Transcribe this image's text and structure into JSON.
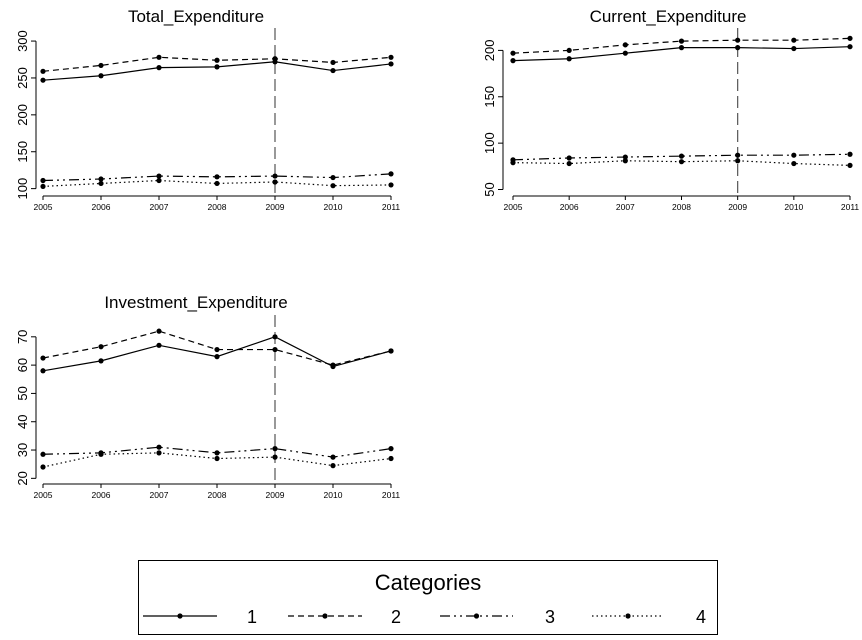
{
  "chart_data": [
    {
      "type": "line",
      "title": "Total_Expenditure",
      "x": [
        2005,
        2006,
        2007,
        2008,
        2009,
        2010,
        2011
      ],
      "ylim": [
        90,
        315
      ],
      "yticks": [
        100,
        150,
        200,
        250,
        300
      ],
      "vline_x": 2009,
      "series": [
        {
          "name": "1",
          "values": [
            247,
            253,
            264,
            265,
            272,
            260,
            269
          ]
        },
        {
          "name": "2",
          "values": [
            259,
            267,
            278,
            274,
            276,
            271,
            278
          ]
        },
        {
          "name": "3",
          "values": [
            111,
            113,
            117,
            116,
            117,
            115,
            120
          ]
        },
        {
          "name": "4",
          "values": [
            103,
            107,
            111,
            107,
            109,
            104,
            105
          ]
        }
      ]
    },
    {
      "type": "line",
      "title": "Current_Expenditure",
      "x": [
        2005,
        2006,
        2007,
        2008,
        2009,
        2010,
        2011
      ],
      "ylim": [
        43,
        222
      ],
      "yticks": [
        50,
        100,
        150,
        200
      ],
      "vline_x": 2009,
      "series": [
        {
          "name": "1",
          "values": [
            189,
            191,
            197,
            203,
            203,
            202,
            204
          ]
        },
        {
          "name": "2",
          "values": [
            197,
            200,
            206,
            210,
            211,
            211,
            213
          ]
        },
        {
          "name": "3",
          "values": [
            82,
            84,
            85,
            86,
            87,
            87,
            88
          ]
        },
        {
          "name": "4",
          "values": [
            79,
            78,
            81,
            80,
            81,
            78,
            76
          ]
        }
      ]
    },
    {
      "type": "line",
      "title": "Investment_Expenditure",
      "x": [
        2005,
        2006,
        2007,
        2008,
        2009,
        2010,
        2011
      ],
      "ylim": [
        18,
        77
      ],
      "yticks": [
        20,
        30,
        40,
        50,
        60,
        70
      ],
      "vline_x": 2009,
      "series": [
        {
          "name": "1",
          "values": [
            58,
            61.5,
            67,
            63,
            70,
            59.5,
            65
          ]
        },
        {
          "name": "2",
          "values": [
            62.5,
            66.5,
            72,
            65.5,
            65.5,
            60,
            65
          ]
        },
        {
          "name": "3",
          "values": [
            28.5,
            29,
            31,
            29,
            30.5,
            27.5,
            30.5
          ]
        },
        {
          "name": "4",
          "values": [
            24,
            28.5,
            29,
            27,
            27.5,
            24.5,
            27
          ]
        }
      ]
    }
  ],
  "legend": {
    "title": "Categories",
    "entries": [
      "1",
      "2",
      "3",
      "4"
    ]
  }
}
